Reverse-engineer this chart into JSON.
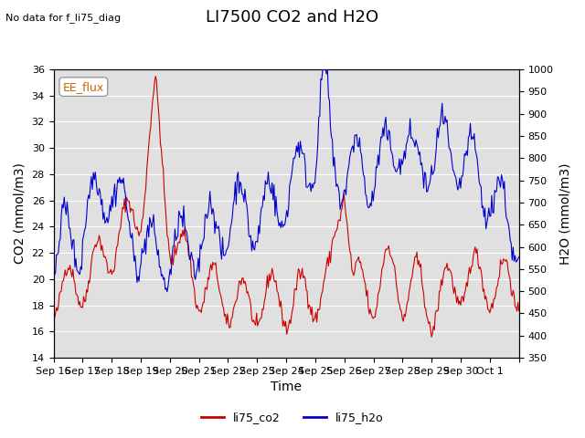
{
  "title": "LI7500 CO2 and H2O",
  "subtitle": "No data for f_li75_diag",
  "annotation": "EE_flux",
  "xlabel": "Time",
  "ylabel_left": "CO2 (mmol/m3)",
  "ylabel_right": "H2O (mmol/m3)",
  "ylim_left": [
    14,
    36
  ],
  "ylim_right": [
    350,
    1000
  ],
  "yticks_left": [
    14,
    16,
    18,
    20,
    22,
    24,
    26,
    28,
    30,
    32,
    34,
    36
  ],
  "yticks_right": [
    350,
    400,
    450,
    500,
    550,
    600,
    650,
    700,
    750,
    800,
    850,
    900,
    950,
    1000
  ],
  "xtick_positions": [
    0,
    1,
    2,
    3,
    4,
    5,
    6,
    7,
    8,
    9,
    10,
    11,
    12,
    13,
    14,
    15,
    16
  ],
  "xtick_labels": [
    "Sep 16",
    "Sep 17",
    "Sep 18",
    "Sep 19",
    "Sep 20",
    "Sep 21",
    "Sep 22",
    "Sep 23",
    "Sep 24",
    "Sep 25",
    "Sep 26",
    "Sep 27",
    "Sep 28",
    "Sep 29",
    "Sep 30",
    "Oct 1",
    ""
  ],
  "legend_labels": [
    "li75_co2",
    "li75_h2o"
  ],
  "legend_colors": [
    "#cc0000",
    "#0000cc"
  ],
  "background_color": "#ffffff",
  "plot_bg_color": "#e0e0e0",
  "grid_color": "#ffffff",
  "title_fontsize": 13,
  "label_fontsize": 10,
  "tick_fontsize": 8
}
